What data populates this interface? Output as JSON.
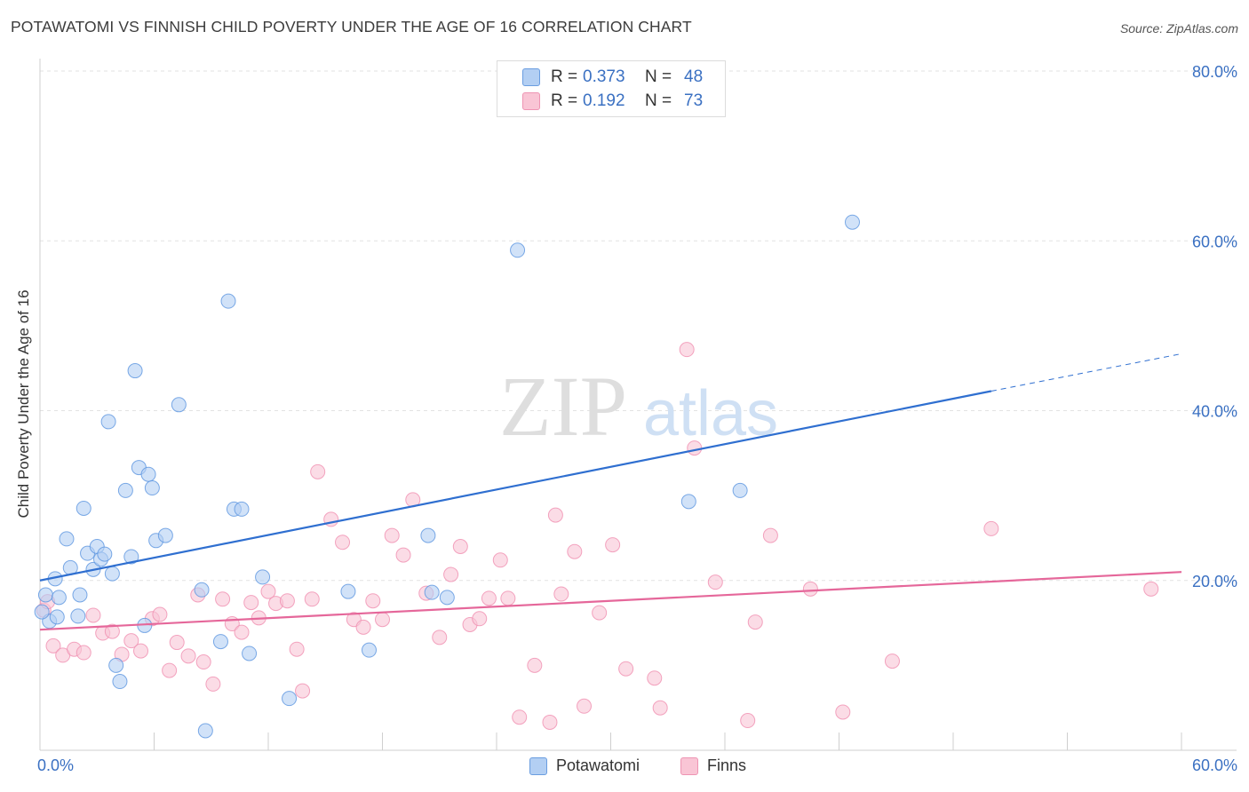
{
  "header": {
    "title": "POTAWATOMI VS FINNISH CHILD POVERTY UNDER THE AGE OF 16 CORRELATION CHART",
    "source": "Source: ZipAtlas.com"
  },
  "watermark": {
    "zip": "ZIP",
    "atlas": "atlas"
  },
  "legend_top": {
    "rows": [
      {
        "r_label": "R =",
        "r_value": "0.373",
        "n_label": "N =",
        "n_value": "48",
        "color": "#a9c8f2"
      },
      {
        "r_label": "R =",
        "r_value": "0.192",
        "n_label": "N =",
        "n_value": "73",
        "color": "#f7b9cc"
      }
    ]
  },
  "legend_bottom": [
    {
      "label": "Potawatomi",
      "color": "#a9c8f2"
    },
    {
      "label": "Finns",
      "color": "#f7b9cc"
    }
  ],
  "chart_data": {
    "type": "scatter",
    "title": "POTAWATOMI VS FINNISH CHILD POVERTY UNDER THE AGE OF 16 CORRELATION CHART",
    "xlabel": "",
    "ylabel": "Child Poverty Under the Age of 16",
    "xlim": [
      0,
      60
    ],
    "ylim": [
      0,
      80
    ],
    "x_tick_labels": [
      "0.0%",
      "60.0%"
    ],
    "y_tick_labels": [
      "20.0%",
      "40.0%",
      "60.0%",
      "80.0%"
    ],
    "y_ticks": [
      20,
      40,
      60,
      80
    ],
    "grid": true,
    "legend_position": "top-center",
    "series": [
      {
        "name": "Potawatomi",
        "color": "#5b95e0",
        "fill": "#b3cff3",
        "trend": {
          "x0": 0,
          "y0": 20.0,
          "x1": 50,
          "y1": 42.3,
          "dashed_to_x": 60,
          "dashed_to_y": 46.7,
          "color": "#2f6fd0"
        },
        "points": [
          [
            0.3,
            18.3
          ],
          [
            0.5,
            15.2
          ],
          [
            0.8,
            20.2
          ],
          [
            0.9,
            15.7
          ],
          [
            1.0,
            18.0
          ],
          [
            1.4,
            24.9
          ],
          [
            1.6,
            21.5
          ],
          [
            2.0,
            15.8
          ],
          [
            2.1,
            18.3
          ],
          [
            2.3,
            28.5
          ],
          [
            2.5,
            23.2
          ],
          [
            2.8,
            21.3
          ],
          [
            3.0,
            24.0
          ],
          [
            3.2,
            22.5
          ],
          [
            3.4,
            23.1
          ],
          [
            3.6,
            38.7
          ],
          [
            3.8,
            20.8
          ],
          [
            4.0,
            10.0
          ],
          [
            4.2,
            8.1
          ],
          [
            4.5,
            30.6
          ],
          [
            4.8,
            22.8
          ],
          [
            5.0,
            44.7
          ],
          [
            5.2,
            33.3
          ],
          [
            5.5,
            14.7
          ],
          [
            5.7,
            32.5
          ],
          [
            5.9,
            30.9
          ],
          [
            6.1,
            24.7
          ],
          [
            6.6,
            25.3
          ],
          [
            7.3,
            40.7
          ],
          [
            8.5,
            18.9
          ],
          [
            8.7,
            2.3
          ],
          [
            9.5,
            12.8
          ],
          [
            9.9,
            52.9
          ],
          [
            10.2,
            28.4
          ],
          [
            10.6,
            28.4
          ],
          [
            11.0,
            11.4
          ],
          [
            11.7,
            20.4
          ],
          [
            13.1,
            6.1
          ],
          [
            16.2,
            18.7
          ],
          [
            17.3,
            11.8
          ],
          [
            20.4,
            25.3
          ],
          [
            20.6,
            18.6
          ],
          [
            21.4,
            18.0
          ],
          [
            25.1,
            58.9
          ],
          [
            34.1,
            29.3
          ],
          [
            36.8,
            30.6
          ],
          [
            42.7,
            62.2
          ],
          [
            0.1,
            16.3
          ]
        ]
      },
      {
        "name": "Finns",
        "color": "#f08fb0",
        "fill": "#f9c5d5",
        "trend": {
          "x0": 0,
          "y0": 14.2,
          "x1": 60,
          "y1": 21.0,
          "color": "#e5679a"
        },
        "points": [
          [
            0.2,
            16.5
          ],
          [
            0.7,
            12.3
          ],
          [
            1.2,
            11.2
          ],
          [
            1.8,
            11.9
          ],
          [
            2.3,
            11.5
          ],
          [
            2.8,
            15.9
          ],
          [
            3.3,
            13.8
          ],
          [
            3.8,
            14.0
          ],
          [
            4.3,
            11.3
          ],
          [
            4.8,
            12.9
          ],
          [
            5.3,
            11.7
          ],
          [
            5.9,
            15.5
          ],
          [
            6.3,
            16.0
          ],
          [
            6.8,
            9.4
          ],
          [
            7.2,
            12.7
          ],
          [
            7.8,
            11.1
          ],
          [
            8.3,
            18.3
          ],
          [
            8.6,
            10.4
          ],
          [
            9.1,
            7.8
          ],
          [
            9.6,
            17.8
          ],
          [
            10.1,
            14.9
          ],
          [
            10.6,
            13.9
          ],
          [
            11.1,
            17.4
          ],
          [
            11.5,
            15.6
          ],
          [
            12.0,
            18.7
          ],
          [
            12.4,
            17.3
          ],
          [
            13.0,
            17.6
          ],
          [
            13.5,
            11.9
          ],
          [
            13.8,
            7.0
          ],
          [
            14.3,
            17.8
          ],
          [
            14.6,
            32.8
          ],
          [
            15.3,
            27.2
          ],
          [
            15.9,
            24.5
          ],
          [
            16.5,
            15.4
          ],
          [
            17.0,
            14.5
          ],
          [
            17.5,
            17.6
          ],
          [
            18.0,
            15.4
          ],
          [
            18.5,
            25.3
          ],
          [
            19.1,
            23.0
          ],
          [
            19.6,
            29.5
          ],
          [
            20.3,
            18.5
          ],
          [
            21.0,
            13.3
          ],
          [
            21.6,
            20.7
          ],
          [
            22.1,
            24.0
          ],
          [
            22.6,
            14.8
          ],
          [
            23.1,
            15.5
          ],
          [
            23.6,
            17.9
          ],
          [
            24.2,
            22.4
          ],
          [
            24.6,
            17.9
          ],
          [
            25.2,
            3.9
          ],
          [
            26.0,
            10.0
          ],
          [
            26.8,
            3.3
          ],
          [
            27.1,
            27.7
          ],
          [
            27.4,
            18.4
          ],
          [
            28.1,
            23.4
          ],
          [
            28.6,
            5.2
          ],
          [
            29.4,
            16.2
          ],
          [
            30.1,
            24.2
          ],
          [
            30.8,
            9.6
          ],
          [
            32.3,
            8.5
          ],
          [
            32.6,
            5.0
          ],
          [
            34.0,
            47.2
          ],
          [
            34.4,
            35.6
          ],
          [
            35.5,
            19.8
          ],
          [
            37.2,
            3.5
          ],
          [
            37.6,
            15.1
          ],
          [
            38.4,
            25.3
          ],
          [
            40.5,
            19.0
          ],
          [
            42.2,
            4.5
          ],
          [
            44.8,
            10.5
          ],
          [
            50.0,
            26.1
          ],
          [
            58.4,
            19.0
          ],
          [
            0.4,
            17.5
          ]
        ]
      }
    ]
  }
}
